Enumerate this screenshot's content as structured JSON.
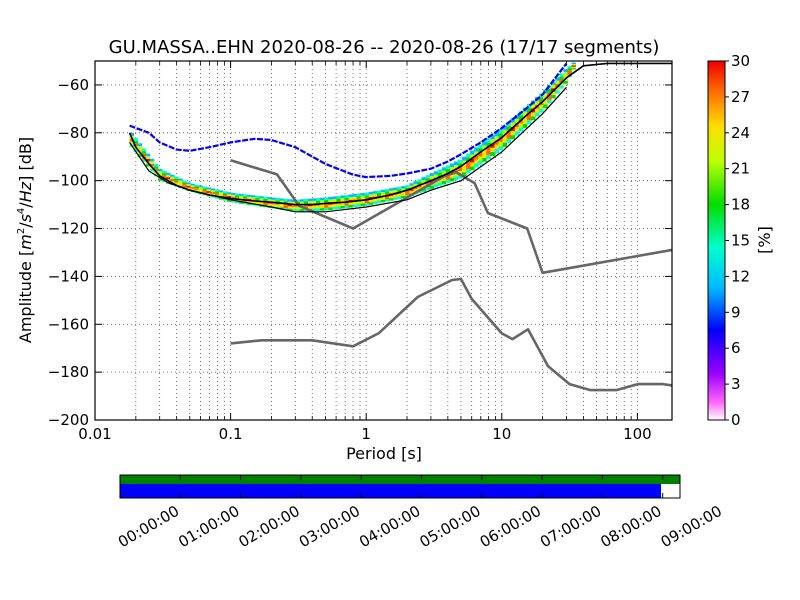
{
  "chart_data": {
    "type": "heatmap",
    "title": "GU.MASSA..EHN   2020-08-26 -- 2020-08-26  (17/17 segments)",
    "xlabel": "Period [s]",
    "ylabel_parts": [
      "Amplitude [",
      "m",
      "2",
      "/",
      "s",
      "4",
      "/",
      "Hz",
      "] [dB]"
    ],
    "x_scale": "log",
    "xlim": [
      0.01,
      180
    ],
    "ylim": [
      -200,
      -50
    ],
    "x_ticks": [
      0.01,
      0.1,
      1,
      10,
      100
    ],
    "x_tick_labels": [
      "0.01",
      "0.1",
      "1",
      "10",
      "100"
    ],
    "y_ticks": [
      -200,
      -180,
      -160,
      -140,
      -120,
      -100,
      -80,
      -60
    ],
    "y_tick_labels": [
      "−200",
      "−180",
      "−160",
      "−140",
      "−120",
      "−100",
      "−80",
      "−60"
    ],
    "grid": true,
    "colorbar": {
      "label": "[%]",
      "range": [
        0,
        30
      ],
      "ticks": [
        0,
        3,
        6,
        9,
        12,
        15,
        18,
        21,
        24,
        27,
        30
      ],
      "tick_labels": [
        "0",
        "3",
        "6",
        "9",
        "12",
        "15",
        "18",
        "21",
        "24",
        "27",
        "30"
      ]
    },
    "noise_models": [
      {
        "x": [
          0.1,
          0.17,
          0.4,
          0.8,
          1.24,
          2.4,
          4.3,
          5.0,
          6.0,
          10,
          12,
          15.6,
          21.9,
          31.6,
          45,
          70,
          101,
          154,
          180
        ],
        "y": [
          -168,
          -166.7,
          -166.7,
          -169.2,
          -163.7,
          -148.6,
          -141.5,
          -141.1,
          -149.4,
          -163.8,
          -166.2,
          -162.1,
          -177.5,
          -185.0,
          -187.5,
          -187.5,
          -185.0,
          -185.0,
          -185.6
        ]
      },
      {
        "x": [
          0.1,
          0.22,
          0.32,
          0.8,
          3.8,
          4.6,
          6.3,
          7.9,
          15.4,
          20,
          354
        ],
        "y": [
          -91.5,
          -97.4,
          -110.5,
          -120.0,
          -98.0,
          -96.5,
          -101.0,
          -113.5,
          -120.0,
          -138.5,
          -126.0
        ]
      }
    ],
    "ppsd_mean": {
      "x": [
        0.018,
        0.02,
        0.025,
        0.03,
        0.04,
        0.05,
        0.07,
        0.1,
        0.15,
        0.2,
        0.3,
        0.4,
        0.5,
        0.7,
        1,
        1.5,
        2,
        3,
        4,
        5,
        7,
        10,
        15,
        20,
        30,
        40,
        60,
        100,
        180
      ],
      "y": [
        -80,
        -86,
        -93,
        -98,
        -102,
        -104,
        -106,
        -107.5,
        -108.5,
        -109,
        -110,
        -110,
        -109.5,
        -109,
        -108,
        -106,
        -104,
        -100,
        -97,
        -94,
        -88,
        -82,
        -73,
        -67,
        -57,
        -52,
        -51,
        -51,
        -51
      ]
    },
    "ppsd_max_envelope": {
      "x": [
        0.018,
        0.02,
        0.025,
        0.03,
        0.04,
        0.05,
        0.07,
        0.1,
        0.15,
        0.2,
        0.3,
        0.5,
        0.8,
        1,
        1.5,
        2,
        3,
        4,
        5,
        7,
        10,
        15,
        20,
        30
      ],
      "y": [
        -77,
        -78,
        -80,
        -84,
        -87,
        -87.5,
        -86,
        -84,
        -82.5,
        -83,
        -86,
        -93,
        -97.5,
        -98.5,
        -98,
        -97,
        -95,
        -92,
        -89,
        -84,
        -78,
        -70,
        -64,
        -51
      ]
    },
    "ppsd_min_envelope": {
      "x": [
        0.018,
        0.025,
        0.035,
        0.05,
        0.1,
        0.2,
        0.3,
        0.5,
        1,
        2,
        3,
        5,
        10,
        20,
        30
      ],
      "y": [
        -84,
        -96,
        -101,
        -104,
        -108,
        -111,
        -113,
        -113,
        -111,
        -108,
        -104,
        -100,
        -88,
        -72,
        -61
      ]
    },
    "heat_band": [
      {
        "x": 0.018,
        "lo": -85,
        "hi": -79
      },
      {
        "x": 0.03,
        "lo": -100,
        "hi": -95
      },
      {
        "x": 0.05,
        "lo": -104.5,
        "hi": -101
      },
      {
        "x": 0.1,
        "lo": -109,
        "hi": -105
      },
      {
        "x": 0.2,
        "lo": -111.5,
        "hi": -107
      },
      {
        "x": 0.3,
        "lo": -113,
        "hi": -108
      },
      {
        "x": 0.5,
        "lo": -112.5,
        "hi": -107
      },
      {
        "x": 1,
        "lo": -110.5,
        "hi": -105
      },
      {
        "x": 2,
        "lo": -107,
        "hi": -102
      },
      {
        "x": 3,
        "lo": -103.5,
        "hi": -97
      },
      {
        "x": 5,
        "lo": -99,
        "hi": -91
      },
      {
        "x": 10,
        "lo": -87,
        "hi": -78
      },
      {
        "x": 20,
        "lo": -71,
        "hi": -63
      },
      {
        "x": 30,
        "lo": -59,
        "hi": -53
      },
      {
        "x": 35,
        "lo": -52,
        "hi": -50
      }
    ]
  },
  "timeline": {
    "tick_labels": [
      "00:00:00",
      "01:00:00",
      "02:00:00",
      "03:00:00",
      "04:00:00",
      "05:00:00",
      "06:00:00",
      "07:00:00",
      "08:00:00",
      "09:00:00"
    ],
    "data_coverage_fraction": 0.966,
    "colors": {
      "available": "#008000",
      "processed": "#0000ff"
    }
  }
}
